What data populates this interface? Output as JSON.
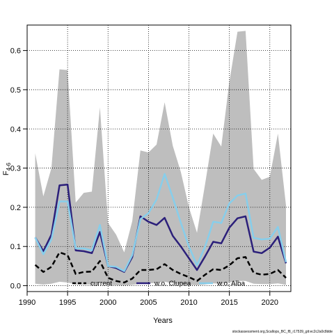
{
  "chart_data": {
    "type": "line",
    "xlabel": "Years",
    "ylabel": "F",
    "ylabel_sub": "4-6",
    "xlim": [
      1990,
      2022.6
    ],
    "ylim": [
      -0.015,
      0.665
    ],
    "xticks": [
      1990,
      1995,
      2000,
      2005,
      2010,
      2015,
      2020
    ],
    "yticks": [
      0.0,
      0.1,
      0.2,
      0.3,
      0.4,
      0.5,
      0.6
    ],
    "grid": true,
    "legend_position": "bottom",
    "x": [
      1991,
      1992,
      1993,
      1994,
      1995,
      1996,
      1997,
      1998,
      1999,
      2000,
      2001,
      2002,
      2003,
      2004,
      2005,
      2006,
      2007,
      2008,
      2009,
      2010,
      2011,
      2012,
      2013,
      2014,
      2015,
      2016,
      2017,
      2018,
      2019,
      2020,
      2021,
      2022
    ],
    "band": {
      "color": "#bebebe",
      "upper": [
        0.338,
        0.228,
        0.3,
        0.552,
        0.55,
        0.212,
        0.237,
        0.24,
        0.455,
        0.16,
        0.13,
        0.085,
        0.165,
        0.345,
        0.34,
        0.36,
        0.468,
        0.357,
        0.29,
        0.2,
        0.135,
        0.26,
        0.388,
        0.355,
        0.52,
        0.648,
        0.65,
        0.298,
        0.27,
        0.278,
        0.388,
        0.205
      ],
      "lower": [
        0.005,
        0.003,
        0.005,
        0.01,
        0.008,
        0.003,
        0.003,
        0.003,
        0.008,
        0.002,
        0.001,
        0.0,
        0.002,
        0.005,
        0.006,
        0.007,
        0.01,
        0.006,
        0.004,
        0.002,
        0.001,
        0.003,
        0.006,
        0.005,
        0.008,
        0.012,
        0.012,
        0.005,
        0.004,
        0.004,
        0.006,
        0.002
      ]
    },
    "series": [
      {
        "name": "current",
        "color": "#000000",
        "style": "dashed",
        "values": [
          0.053,
          0.035,
          0.048,
          0.085,
          0.078,
          0.03,
          0.035,
          0.036,
          0.063,
          0.02,
          0.012,
          0.008,
          0.018,
          0.04,
          0.04,
          0.042,
          0.055,
          0.04,
          0.03,
          0.022,
          0.012,
          0.028,
          0.042,
          0.04,
          0.052,
          0.07,
          0.073,
          0.033,
          0.028,
          0.03,
          0.04,
          0.02
        ]
      },
      {
        "name": "w.o. Clupea",
        "color": "#2b1f7a",
        "style": "solid",
        "values": [
          0.123,
          0.088,
          0.13,
          0.256,
          0.258,
          0.09,
          0.088,
          0.083,
          0.137,
          0.05,
          0.045,
          0.035,
          0.073,
          0.177,
          0.163,
          0.155,
          0.173,
          0.127,
          0.1,
          0.07,
          0.04,
          0.075,
          0.112,
          0.108,
          0.148,
          0.172,
          0.177,
          0.087,
          0.083,
          0.097,
          0.125,
          0.057
        ]
      },
      {
        "name": "w.o. Alba",
        "color": "#87ceeb",
        "style": "solid",
        "values": [
          0.123,
          0.08,
          0.118,
          0.215,
          0.215,
          0.095,
          0.095,
          0.09,
          0.155,
          0.05,
          0.048,
          0.037,
          0.078,
          0.17,
          0.185,
          0.22,
          0.285,
          0.225,
          0.16,
          0.1,
          0.052,
          0.1,
          0.163,
          0.16,
          0.21,
          0.23,
          0.235,
          0.122,
          0.118,
          0.12,
          0.15,
          0.06
        ]
      }
    ]
  },
  "footer": "stockassessment.org,Scallops_BC_f8_r17539_git:ec2c2a0c8dde"
}
